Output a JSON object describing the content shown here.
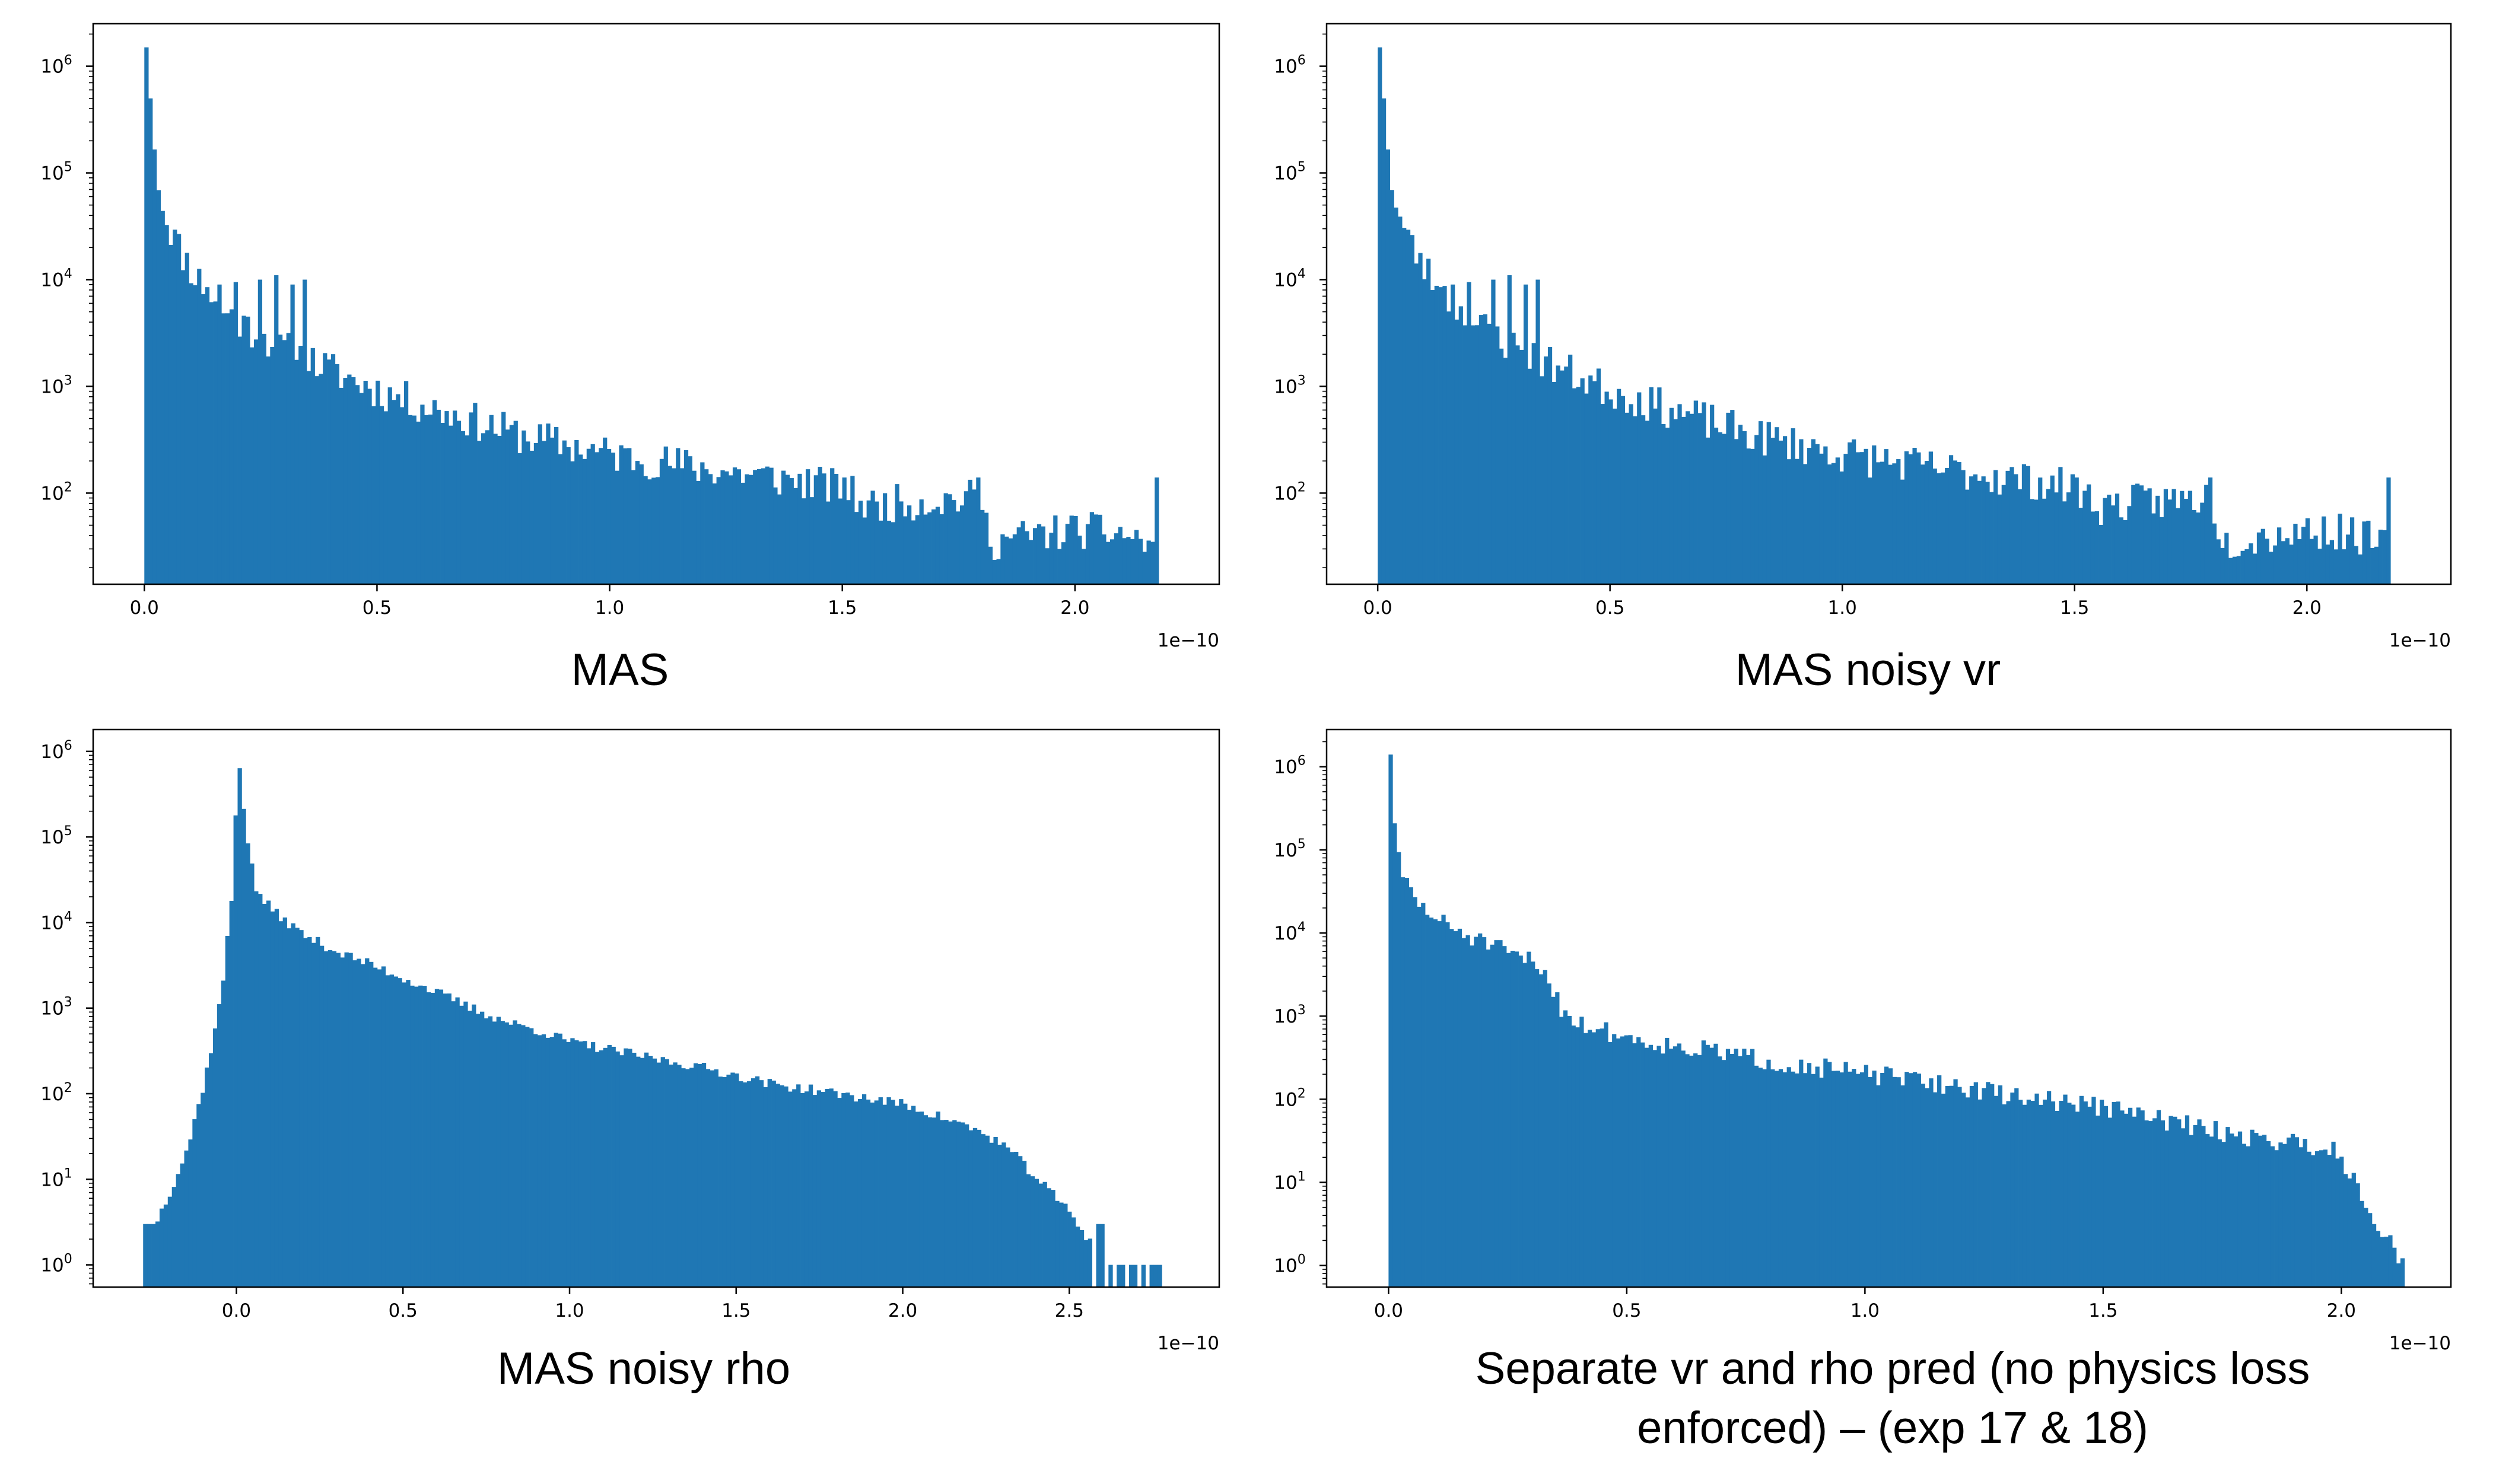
{
  "captions": [
    "MAS",
    "MAS noisy vr",
    "MAS noisy rho",
    "Separate vr and rho pred (no physics loss enforced) – (exp 17 & 18)"
  ],
  "colors": {
    "bar": "#1f77b4",
    "axis": "#000000"
  },
  "chart_data": [
    {
      "type": "bar",
      "title": "",
      "xlabel": "",
      "ylabel": "",
      "y_scale": "log",
      "x_offset_label": "1e−10",
      "xlim": [
        -1.1e-11,
        2.31e-10
      ],
      "ylim": [
        14,
        2500000
      ],
      "xticks": [
        0.0,
        0.5,
        1.0,
        1.5,
        2.0
      ],
      "xtick_labels": [
        "0.0",
        "0.5",
        "1.0",
        "1.5",
        "2.0"
      ],
      "yticks": [
        100,
        1000,
        10000,
        100000,
        1000000
      ],
      "ytick_labels": [
        "10^2",
        "10^3",
        "10^4",
        "10^5",
        "10^6"
      ],
      "x_start": 0.0,
      "bin_width": 8.72e-13,
      "anchors": [
        [
          0.0,
          1500000
        ],
        [
          0.02,
          120000
        ],
        [
          0.04,
          40000
        ],
        [
          0.07,
          20000
        ],
        [
          0.1,
          12000
        ],
        [
          0.15,
          6000
        ],
        [
          0.2,
          4000
        ],
        [
          0.3,
          2200
        ],
        [
          0.4,
          1400
        ],
        [
          0.5,
          900
        ],
        [
          0.6,
          650
        ],
        [
          0.7,
          480
        ],
        [
          0.8,
          350
        ],
        [
          1.0,
          230
        ],
        [
          1.2,
          170
        ],
        [
          1.4,
          130
        ],
        [
          1.5,
          110
        ],
        [
          1.55,
          75
        ],
        [
          1.6,
          80
        ],
        [
          1.78,
          90
        ],
        [
          1.82,
          35
        ],
        [
          1.9,
          40
        ],
        [
          2.0,
          45
        ],
        [
          2.1,
          42
        ],
        [
          2.17,
          30
        ]
      ],
      "spikes": [
        [
          0.5,
          5000
        ],
        [
          1.0,
          7000
        ],
        [
          1.15,
          7800
        ],
        [
          1.6,
          8500
        ],
        [
          2.0,
          9000
        ],
        [
          2.4,
          9500
        ],
        [
          3.0,
          10000
        ],
        [
          3.5,
          11000
        ],
        [
          3.9,
          9000
        ],
        [
          4.3,
          10000
        ],
        [
          1.5,
          140
        ],
        [
          1.79,
          140
        ],
        [
          2.17,
          140
        ]
      ],
      "noise": 0.18,
      "seed": 11
    },
    {
      "type": "bar",
      "title": "",
      "xlabel": "",
      "ylabel": "",
      "y_scale": "log",
      "x_offset_label": "1e−10",
      "xlim": [
        -1.1e-11,
        2.31e-10
      ],
      "ylim": [
        14,
        2500000
      ],
      "xticks": [
        0.0,
        0.5,
        1.0,
        1.5,
        2.0
      ],
      "xtick_labels": [
        "0.0",
        "0.5",
        "1.0",
        "1.5",
        "2.0"
      ],
      "yticks": [
        100,
        1000,
        10000,
        100000,
        1000000
      ],
      "ytick_labels": [
        "10^2",
        "10^3",
        "10^4",
        "10^5",
        "10^6"
      ],
      "x_start": 0.0,
      "bin_width": 8.72e-13,
      "anchors": [
        [
          0.0,
          1500000
        ],
        [
          0.02,
          120000
        ],
        [
          0.04,
          40000
        ],
        [
          0.07,
          20000
        ],
        [
          0.1,
          12000
        ],
        [
          0.15,
          6000
        ],
        [
          0.2,
          4000
        ],
        [
          0.3,
          2200
        ],
        [
          0.4,
          1400
        ],
        [
          0.5,
          900
        ],
        [
          0.6,
          650
        ],
        [
          0.7,
          480
        ],
        [
          0.8,
          350
        ],
        [
          1.0,
          230
        ],
        [
          1.2,
          170
        ],
        [
          1.4,
          130
        ],
        [
          1.5,
          110
        ],
        [
          1.55,
          75
        ],
        [
          1.6,
          80
        ],
        [
          1.78,
          90
        ],
        [
          1.82,
          35
        ],
        [
          1.9,
          40
        ],
        [
          2.0,
          45
        ],
        [
          2.1,
          42
        ],
        [
          2.17,
          30
        ]
      ],
      "spikes": [
        [
          0.5,
          5000
        ],
        [
          1.0,
          7000
        ],
        [
          1.15,
          7800
        ],
        [
          1.6,
          8500
        ],
        [
          2.0,
          9000
        ],
        [
          2.4,
          9500
        ],
        [
          3.0,
          10000
        ],
        [
          3.5,
          11000
        ],
        [
          3.9,
          9000
        ],
        [
          4.3,
          10000
        ],
        [
          1.5,
          140
        ],
        [
          1.79,
          140
        ],
        [
          2.17,
          140
        ]
      ],
      "noise": 0.18,
      "seed": 23
    },
    {
      "type": "bar",
      "title": "",
      "xlabel": "",
      "ylabel": "",
      "y_scale": "log",
      "x_offset_label": "1e−10",
      "xlim": [
        -4.3e-11,
        2.95e-10
      ],
      "ylim": [
        0.55,
        1800000
      ],
      "xticks": [
        0.0,
        0.5,
        1.0,
        1.5,
        2.0,
        2.5
      ],
      "xtick_labels": [
        "0.0",
        "0.5",
        "1.0",
        "1.5",
        "2.0",
        "2.5"
      ],
      "yticks": [
        1,
        10,
        100,
        1000,
        10000,
        100000,
        1000000
      ],
      "ytick_labels": [
        "10^0",
        "10^1",
        "10^2",
        "10^3",
        "10^4",
        "10^5",
        "10^6"
      ],
      "x_start": -2.8e-11,
      "bin_width": 1.233e-12,
      "anchors": [
        [
          -0.28,
          3
        ],
        [
          -0.25,
          3
        ],
        [
          -0.2,
          8
        ],
        [
          -0.15,
          25
        ],
        [
          -0.1,
          150
        ],
        [
          -0.05,
          1500
        ],
        [
          -0.02,
          20000
        ],
        [
          0.0,
          1000000
        ],
        [
          0.02,
          150000
        ],
        [
          0.05,
          25000
        ],
        [
          0.1,
          14000
        ],
        [
          0.2,
          7000
        ],
        [
          0.3,
          4500
        ],
        [
          0.4,
          3200
        ],
        [
          0.5,
          2200
        ],
        [
          0.6,
          1500
        ],
        [
          0.7,
          1000
        ],
        [
          0.8,
          700
        ],
        [
          0.9,
          550
        ],
        [
          1.0,
          400
        ],
        [
          1.2,
          280
        ],
        [
          1.4,
          200
        ],
        [
          1.6,
          130
        ],
        [
          1.8,
          100
        ],
        [
          2.0,
          75
        ],
        [
          2.2,
          40
        ],
        [
          2.3,
          25
        ],
        [
          2.4,
          10
        ],
        [
          2.5,
          4
        ],
        [
          2.55,
          2
        ],
        [
          2.6,
          1
        ]
      ],
      "sparse": {
        "from": 2.57,
        "values": [
          0,
          3,
          3,
          0,
          1,
          0,
          1,
          1,
          0,
          1,
          1,
          0,
          1,
          0,
          1,
          1,
          1
        ]
      },
      "noise": 0.06,
      "seed": 37
    },
    {
      "type": "bar",
      "title": "",
      "xlabel": "",
      "ylabel": "",
      "y_scale": "log",
      "x_offset_label": "1e−10",
      "xlim": [
        -1.3e-11,
        2.23e-10
      ],
      "ylim": [
        0.55,
        2800000
      ],
      "xticks": [
        0.0,
        0.5,
        1.0,
        1.5,
        2.0
      ],
      "xtick_labels": [
        "0.0",
        "0.5",
        "1.0",
        "1.5",
        "2.0"
      ],
      "yticks": [
        1,
        10,
        100,
        1000,
        10000,
        100000,
        1000000
      ],
      "ytick_labels": [
        "10^0",
        "10^1",
        "10^2",
        "10^3",
        "10^4",
        "10^5",
        "10^6"
      ],
      "x_start": 0.0,
      "bin_width": 8.53e-13,
      "anchors": [
        [
          0.0,
          1400000
        ],
        [
          0.01,
          150000
        ],
        [
          0.03,
          40000
        ],
        [
          0.06,
          22000
        ],
        [
          0.1,
          14000
        ],
        [
          0.15,
          10000
        ],
        [
          0.2,
          7500
        ],
        [
          0.25,
          5500
        ],
        [
          0.3,
          4500
        ],
        [
          0.33,
          3000
        ],
        [
          0.36,
          1200
        ],
        [
          0.4,
          800
        ],
        [
          0.5,
          550
        ],
        [
          0.6,
          430
        ],
        [
          0.7,
          360
        ],
        [
          0.8,
          280
        ],
        [
          0.9,
          240
        ],
        [
          1.0,
          200
        ],
        [
          1.1,
          170
        ],
        [
          1.2,
          140
        ],
        [
          1.3,
          110
        ],
        [
          1.4,
          95
        ],
        [
          1.5,
          80
        ],
        [
          1.6,
          60
        ],
        [
          1.7,
          45
        ],
        [
          1.8,
          35
        ],
        [
          1.9,
          30
        ],
        [
          1.98,
          25
        ],
        [
          2.03,
          10
        ],
        [
          2.07,
          3
        ],
        [
          2.1,
          2
        ],
        [
          2.12,
          1
        ]
      ],
      "noise": 0.12,
      "seed": 51
    }
  ]
}
